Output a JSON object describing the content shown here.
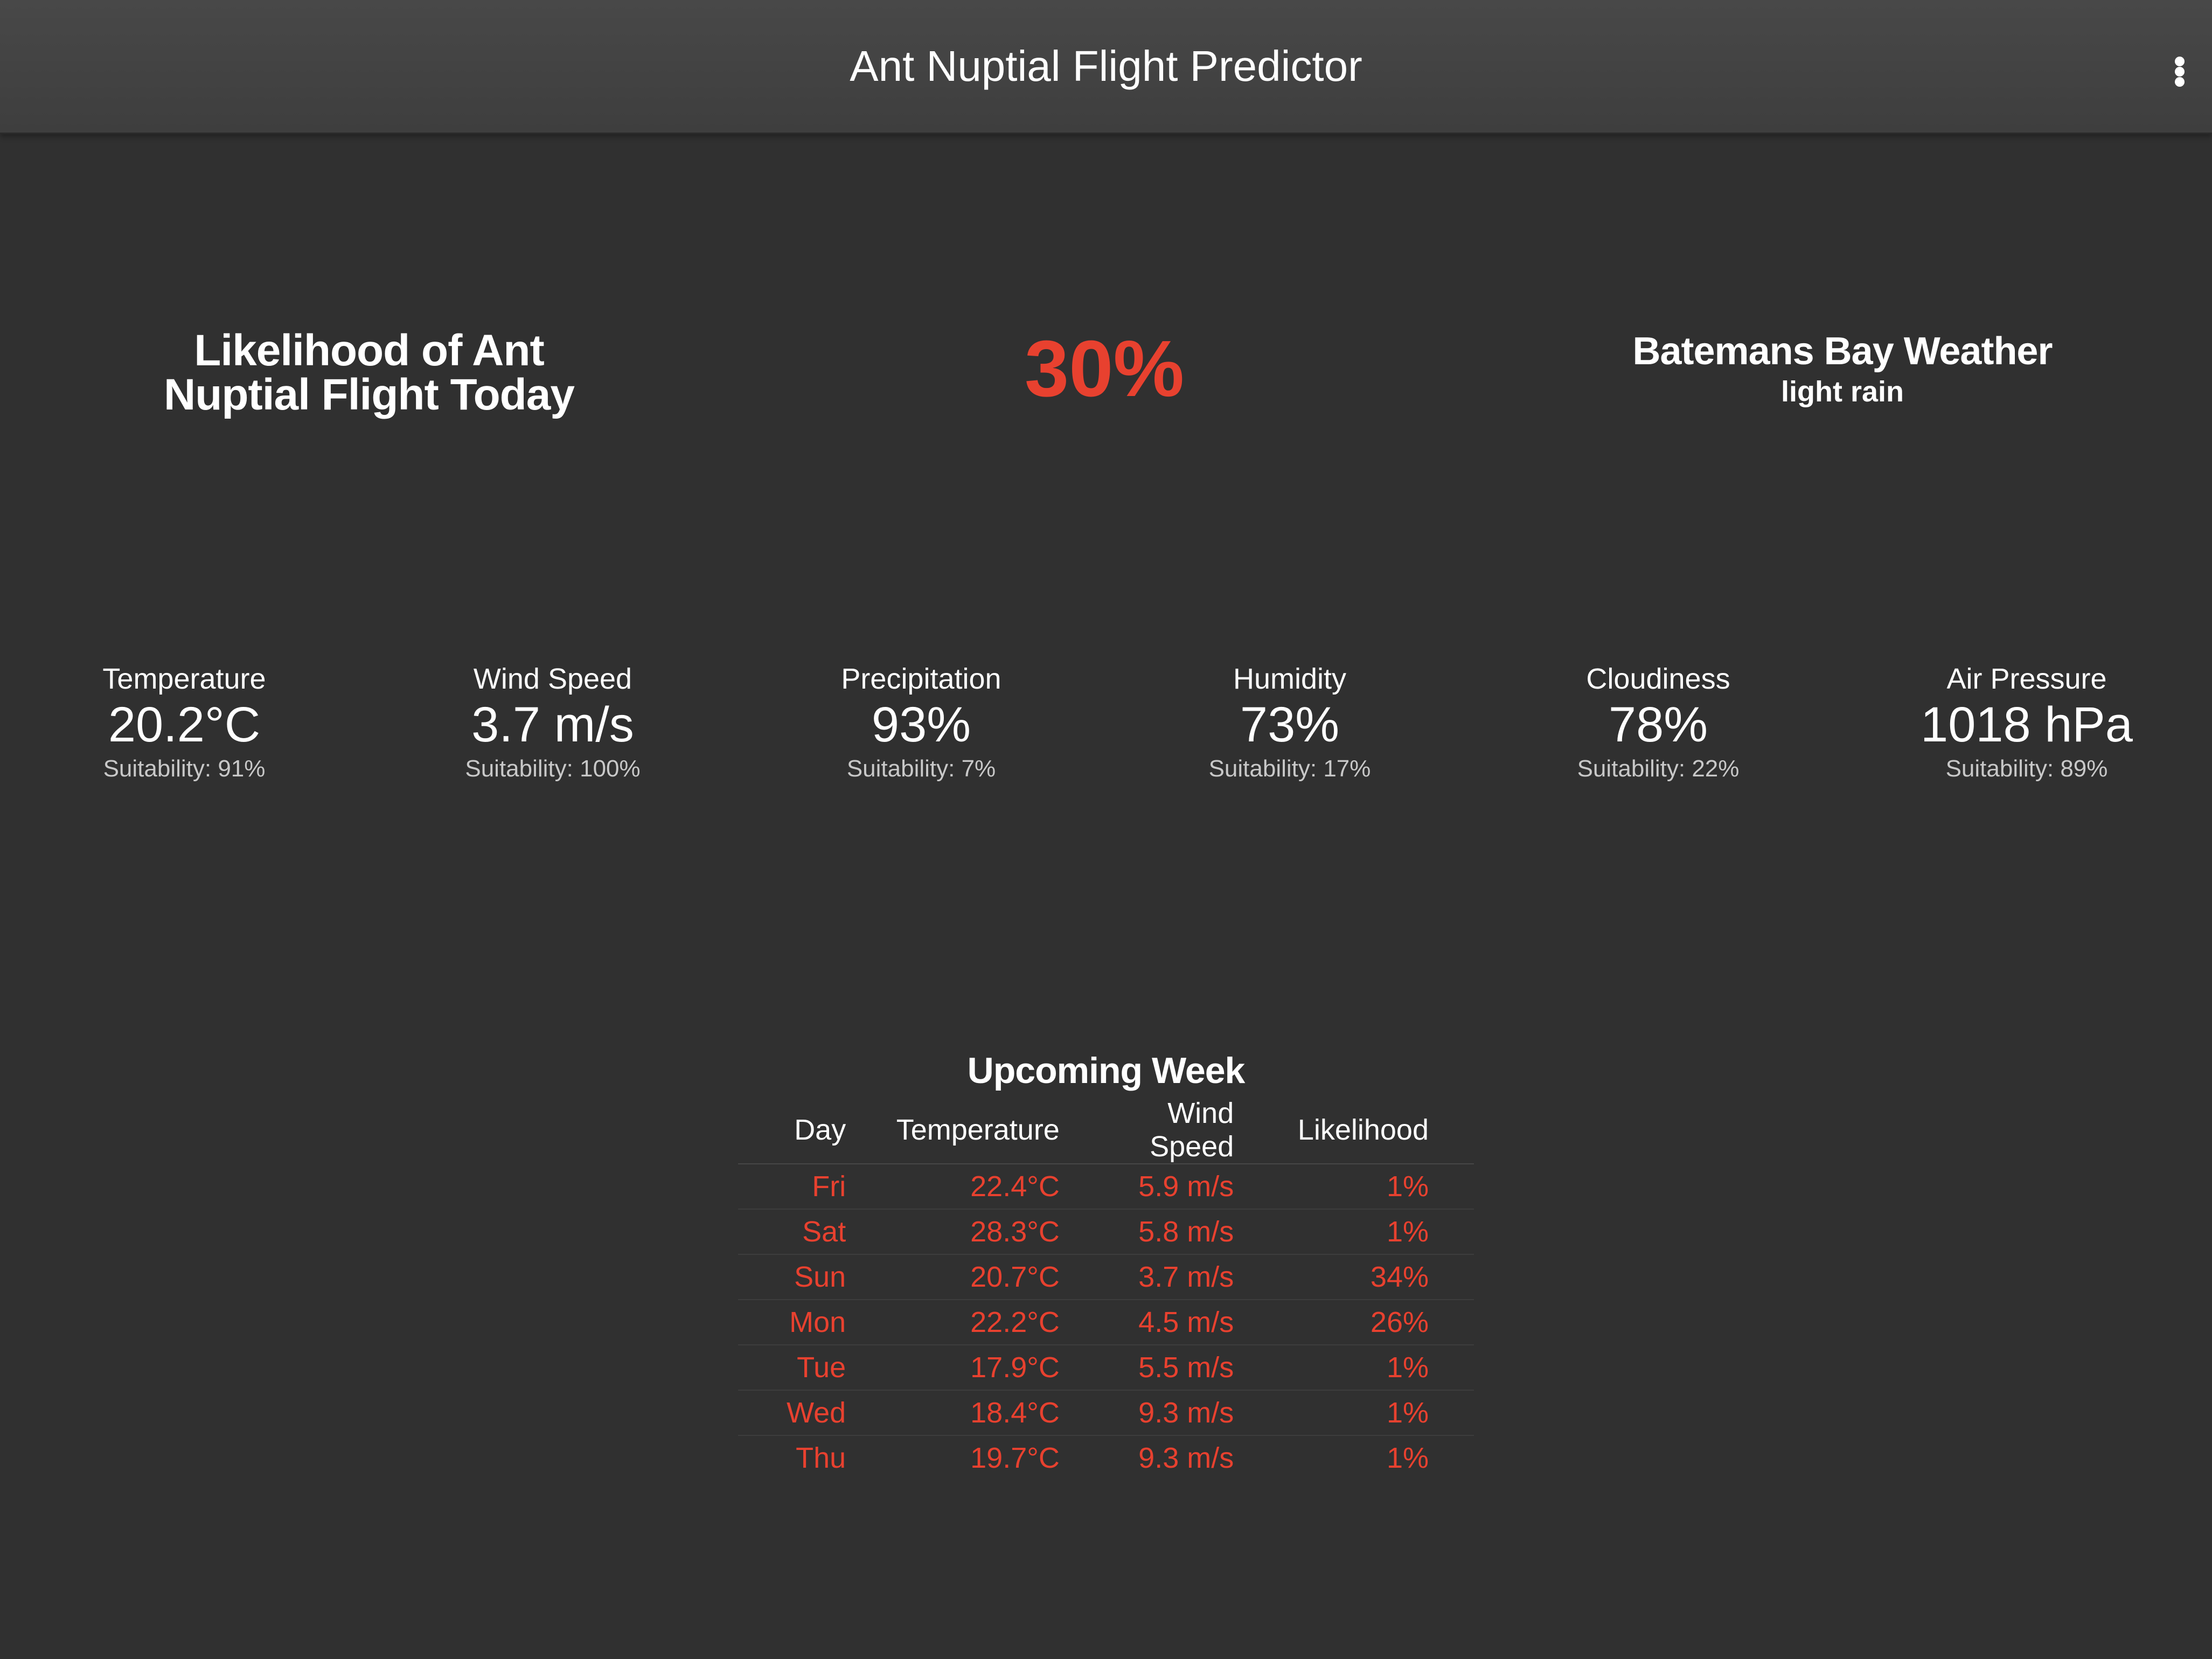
{
  "app": {
    "title": "Ant Nuptial Flight Predictor"
  },
  "headline": {
    "label": "Likelihood of Ant Nuptial Flight Today",
    "value": "30%"
  },
  "weather": {
    "location_title": "Batemans Bay Weather",
    "description": "light rain"
  },
  "metrics": [
    {
      "label": "Temperature",
      "value": "20.2°C",
      "suitability": "Suitability: 91%"
    },
    {
      "label": "Wind Speed",
      "value": "3.7 m/s",
      "suitability": "Suitability: 100%"
    },
    {
      "label": "Precipitation",
      "value": "93%",
      "suitability": "Suitability: 7%"
    },
    {
      "label": "Humidity",
      "value": "73%",
      "suitability": "Suitability: 17%"
    },
    {
      "label": "Cloudiness",
      "value": "78%",
      "suitability": "Suitability: 22%"
    },
    {
      "label": "Air Pressure",
      "value": "1018 hPa",
      "suitability": "Suitability: 89%"
    }
  ],
  "week": {
    "title": "Upcoming Week",
    "headers": [
      "Day",
      "Temperature",
      "Wind Speed",
      "Likelihood"
    ],
    "rows": [
      {
        "day": "Fri",
        "temperature": "22.4°C",
        "wind": "5.9 m/s",
        "likelihood": "1%"
      },
      {
        "day": "Sat",
        "temperature": "28.3°C",
        "wind": "5.8 m/s",
        "likelihood": "1%"
      },
      {
        "day": "Sun",
        "temperature": "20.7°C",
        "wind": "3.7 m/s",
        "likelihood": "34%"
      },
      {
        "day": "Mon",
        "temperature": "22.2°C",
        "wind": "4.5 m/s",
        "likelihood": "26%"
      },
      {
        "day": "Tue",
        "temperature": "17.9°C",
        "wind": "5.5 m/s",
        "likelihood": "1%"
      },
      {
        "day": "Wed",
        "temperature": "18.4°C",
        "wind": "9.3 m/s",
        "likelihood": "1%"
      },
      {
        "day": "Thu",
        "temperature": "19.7°C",
        "wind": "9.3 m/s",
        "likelihood": "1%"
      }
    ]
  },
  "colors": {
    "accent": "#e8412f",
    "background": "#303030",
    "appbar": "#444444"
  },
  "icons": {
    "menu": "more-vertical-icon"
  }
}
